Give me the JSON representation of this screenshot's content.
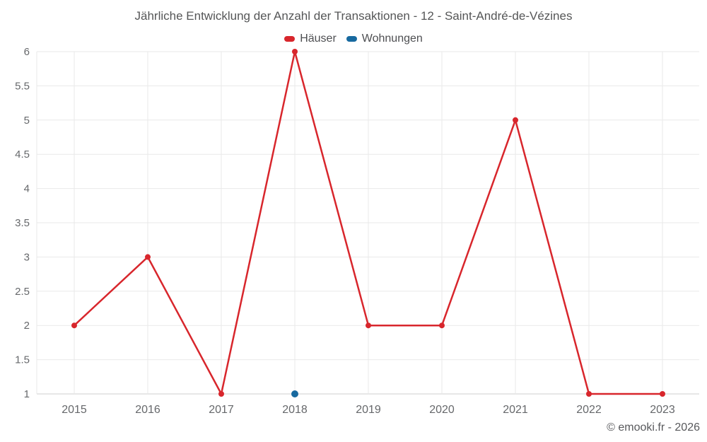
{
  "chart_data": {
    "type": "line",
    "title": "Jährliche Entwicklung der Anzahl der Transaktionen - 12 - Saint-André-de-Vézines",
    "x": [
      "2015",
      "2016",
      "2017",
      "2018",
      "2019",
      "2020",
      "2021",
      "2022",
      "2023"
    ],
    "series": [
      {
        "name": "Häuser",
        "color": "#d8262c",
        "marker_radius": 4,
        "values": [
          2,
          3,
          1,
          6,
          2,
          2,
          5,
          1,
          1
        ]
      },
      {
        "name": "Wohnungen",
        "color": "#17699f",
        "marker_radius": 5,
        "values": [
          null,
          null,
          null,
          1,
          null,
          null,
          null,
          null,
          null
        ]
      }
    ],
    "xlabel": "",
    "ylabel": "",
    "ylim": [
      1,
      6
    ],
    "ytick_step": 0.5,
    "grid": true,
    "legend_position": "top",
    "grid_color": "#e9e9e9",
    "axis_color": "#cfcfcf",
    "tick_label_color": "#66686b"
  },
  "footer": {
    "credit": "© emooki.fr - 2026"
  }
}
